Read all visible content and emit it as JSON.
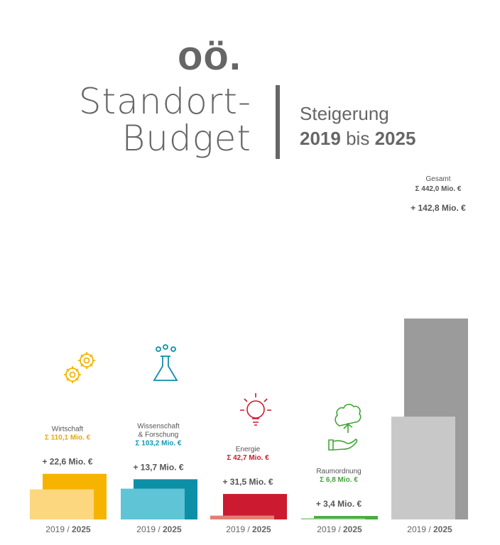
{
  "header": {
    "logo": "oö.",
    "title_line1": "Standort-",
    "title_line2": "Budget",
    "sub_line1": "Steigerung",
    "sub_from": "2019",
    "sub_mid": "bis",
    "sub_to": "2025"
  },
  "icons": [
    "gears-icon",
    "flask-icon",
    "lightbulb-icon",
    "hand-tree-icon"
  ],
  "chart_data": {
    "type": "bar",
    "categories": [
      "Wirtschaft",
      "Wissenschaft & Forschung",
      "Energie",
      "Raumordnung",
      "Gesamt"
    ],
    "category_lines": [
      [
        "Wirtschaft"
      ],
      [
        "Wissenschaft",
        "& Forschung"
      ],
      [
        "Energie"
      ],
      [
        "Raumordnung"
      ],
      [
        "Gesamt"
      ]
    ],
    "totals": [
      "Σ 110,1 Mio. €",
      "Σ 103,2 Mio. €",
      "Σ 42,7 Mio. €",
      "Σ 6,8 Mio. €",
      "Σ 442,0 Mio. €"
    ],
    "increases": [
      "+ 22,6 Mio. €",
      "+ 13,7 Mio. €",
      "+ 31,5 Mio. €",
      "+ 3,4 Mio. €",
      "+ 142,8 Mio. €"
    ],
    "xlabel_prefix": "2019 / ",
    "xlabel_bold": "2025",
    "series": [
      {
        "values": [
          43.8,
          44.8,
          5.6,
          1.7,
          149.6
        ]
      },
      {
        "values": [
          66.4,
          58.5,
          37.1,
          5.1,
          292.4
        ]
      }
    ],
    "colors": {
      "light": [
        "#fcd77f",
        "#5ec4d6",
        "#e38076",
        "#8dce84",
        "#c8c8c8"
      ],
      "dark": [
        "#f6b400",
        "#0e8fa8",
        "#cc1a31",
        "#4aab3f",
        "#9b9b9b"
      ],
      "sum": [
        "#e8a800",
        "#0a9ab3",
        "#cc1a31",
        "#3fa635",
        "#555555"
      ]
    }
  }
}
